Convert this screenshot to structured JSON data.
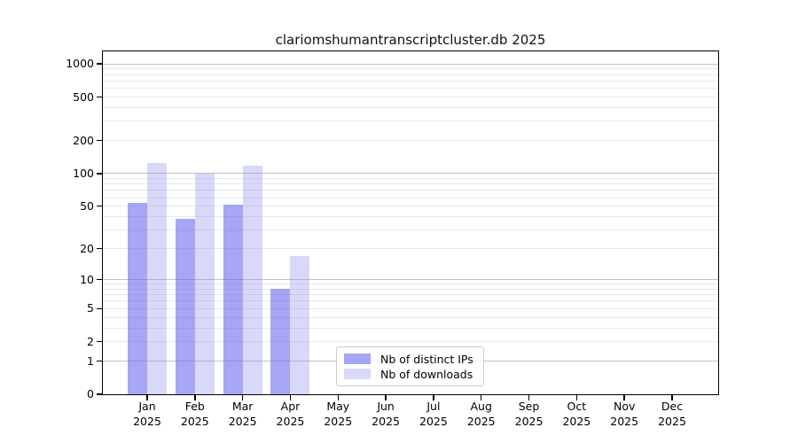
{
  "title": "clariomshumantranscriptcluster.db 2025",
  "chart_data": {
    "type": "bar",
    "title": "clariomshumantranscriptcluster.db 2025",
    "categories": [
      "Jan",
      "Feb",
      "Mar",
      "Apr",
      "May",
      "Jun",
      "Jul",
      "Aug",
      "Sep",
      "Oct",
      "Nov",
      "Dec"
    ],
    "year": "2025",
    "series": [
      {
        "name": "Nb of distinct IPs",
        "fill": "rgba(102,102,238,0.58)",
        "legend_color": "#a6a6f5",
        "values": [
          54,
          38,
          52,
          8,
          0,
          0,
          0,
          0,
          0,
          0,
          0,
          0
        ]
      },
      {
        "name": "Nb of downloads",
        "fill": "rgba(136,136,238,0.33)",
        "legend_color": "#d9d9f9",
        "values": [
          125,
          100,
          118,
          17,
          0,
          0,
          0,
          0,
          0,
          0,
          0,
          0
        ]
      }
    ],
    "y_axis": {
      "scale": "log1p",
      "ticks": [
        0,
        1,
        2,
        5,
        10,
        20,
        50,
        100,
        200,
        500,
        1000
      ],
      "max": 1300
    },
    "x_axis": {
      "tick_label_format": "month over year"
    },
    "grid": {
      "major_values": [
        1,
        10,
        100,
        1000
      ],
      "minor_values": [
        2,
        3,
        4,
        5,
        6,
        7,
        8,
        9,
        20,
        30,
        40,
        50,
        60,
        70,
        80,
        90,
        200,
        300,
        400,
        500,
        600,
        700,
        800,
        900
      ],
      "major_color": "#c2c2c2",
      "minor_color": "#e9e9e9"
    },
    "legend": {
      "position": "inside-bottom-center"
    },
    "ylim": [
      0,
      1300
    ],
    "background": "#ffffff"
  }
}
